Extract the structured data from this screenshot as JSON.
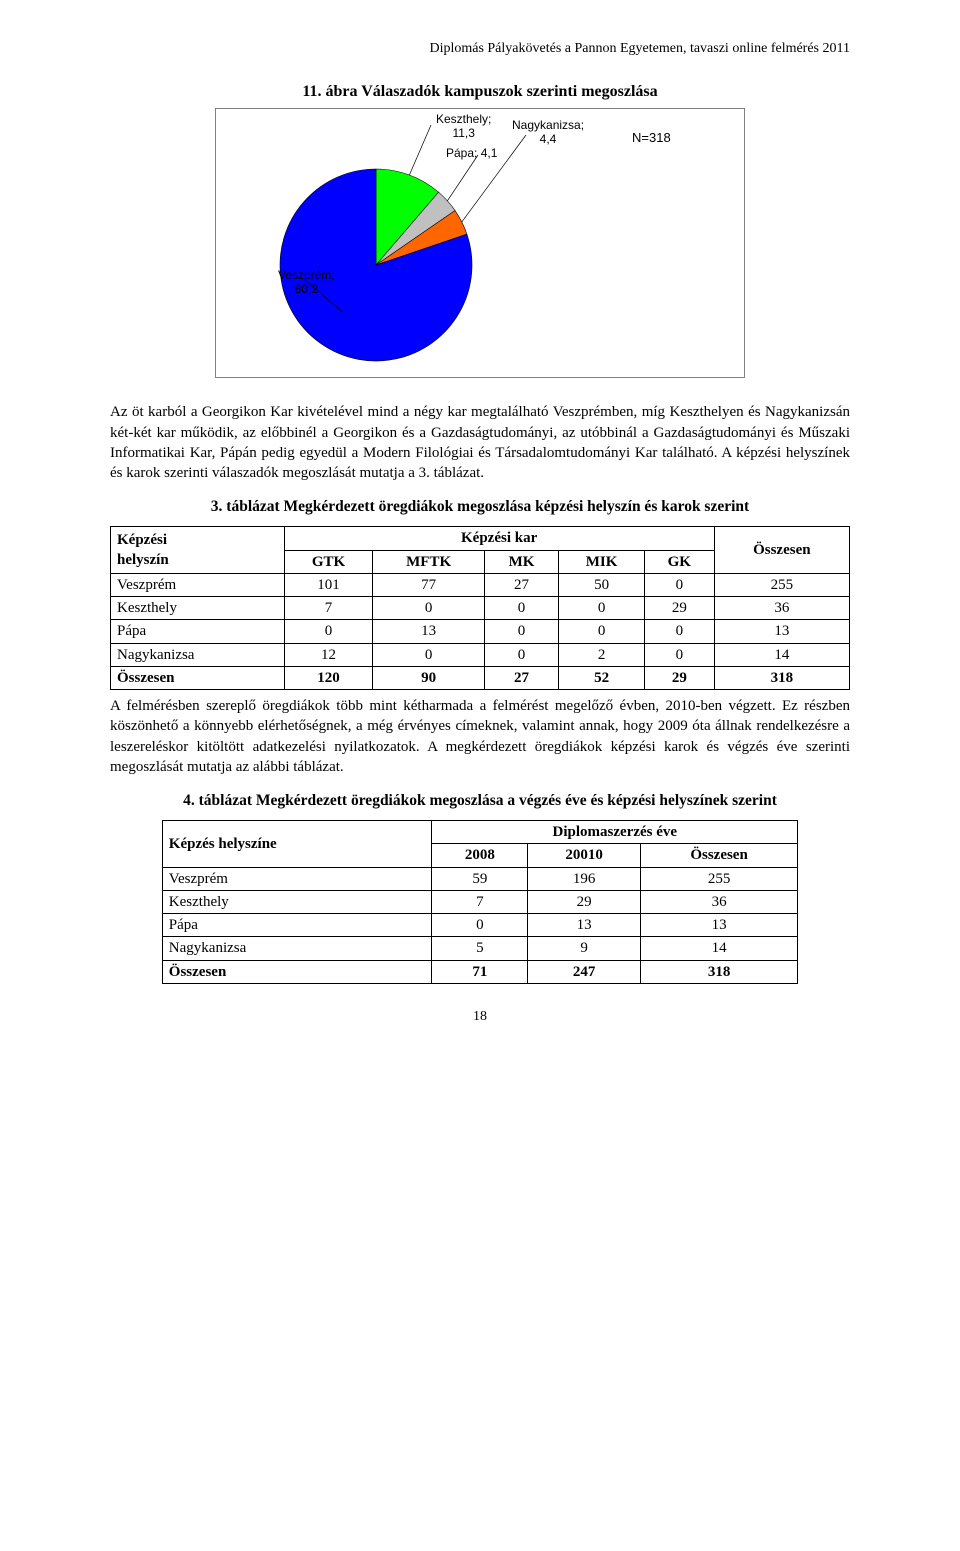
{
  "header": "Diplomás Pályakövetés a Pannon Egyetemen, tavaszi online felmérés 2011",
  "figure": {
    "title": "11. ábra Válaszadók kampuszok szerinti megoszlása",
    "n_label": "N=318",
    "type": "pie",
    "background_color": "#ffffff",
    "border_color": "#808080",
    "slices": [
      {
        "name": "Veszprém",
        "value": 80.2,
        "color": "#0000ff",
        "label": "Veszprém; 80,2"
      },
      {
        "name": "Keszthely",
        "value": 11.3,
        "color": "#00ff00",
        "label": "Keszthely; 11,3"
      },
      {
        "name": "Pápa",
        "value": 4.1,
        "color": "#c0c0c0",
        "label": "Pápa; 4,1"
      },
      {
        "name": "Nagykanizsa",
        "value": 4.4,
        "color": "#ff6600",
        "label": "Nagykanizsa; 4,4"
      }
    ],
    "label_fontsize": 12,
    "leader_color": "#000000"
  },
  "para1": "Az öt karból a Georgikon Kar kivételével mind a négy kar megtalálható Veszprémben, míg Keszthelyen és Nagykanizsán két-két kar működik, az előbbinél a Georgikon és a Gazdaságtudományi, az utóbbinál a Gazdaságtudományi és Műszaki Informatikai Kar, Pápán pedig egyedül a Modern Filológiai és Társadalomtudományi Kar található. A képzési helyszínek és karok szerinti válaszadók megoszlását mutatja a 3. táblázat.",
  "table3": {
    "title": "3. táblázat Megkérdezett öregdiákok megoszlása képzési helyszín és karok szerint",
    "row_header": "Képzési helyszín",
    "col_group": "Képzési kar",
    "columns": [
      "GTK",
      "MFTK",
      "MK",
      "MIK",
      "GK",
      "Összesen"
    ],
    "rows": [
      {
        "label": "Veszprém",
        "cells": [
          "101",
          "77",
          "27",
          "50",
          "0",
          "255"
        ]
      },
      {
        "label": "Keszthely",
        "cells": [
          "7",
          "0",
          "0",
          "0",
          "29",
          "36"
        ]
      },
      {
        "label": "Pápa",
        "cells": [
          "0",
          "13",
          "0",
          "0",
          "0",
          "13"
        ]
      },
      {
        "label": "Nagykanizsa",
        "cells": [
          "12",
          "0",
          "0",
          "2",
          "0",
          "14"
        ]
      },
      {
        "label": "Összesen",
        "cells": [
          "120",
          "90",
          "27",
          "52",
          "29",
          "318"
        ],
        "bold": true
      }
    ]
  },
  "para2": "A felmérésben szereplő öregdiákok több mint kétharmada a felmérést megelőző évben, 2010-ben végzett. Ez részben köszönhető a könnyebb elérhetőségnek, a még érvényes címeknek, valamint annak, hogy 2009 óta állnak rendelkezésre a leszereléskor kitöltött adatkezelési nyilatkozatok. A megkérdezett öregdiákok képzési karok és végzés éve szerinti megoszlását mutatja az alábbi táblázat.",
  "table4": {
    "title": "4. táblázat Megkérdezett öregdiákok megoszlása a végzés éve és képzési helyszínek szerint",
    "row_header": "Képzés helyszíne",
    "col_group": "Diplomaszerzés éve",
    "columns": [
      "2008",
      "20010",
      "Összesen"
    ],
    "rows": [
      {
        "label": "Veszprém",
        "cells": [
          "59",
          "196",
          "255"
        ]
      },
      {
        "label": "Keszthely",
        "cells": [
          "7",
          "29",
          "36"
        ]
      },
      {
        "label": "Pápa",
        "cells": [
          "0",
          "13",
          "13"
        ]
      },
      {
        "label": "Nagykanizsa",
        "cells": [
          "5",
          "9",
          "14"
        ]
      },
      {
        "label": "Összesen",
        "cells": [
          "71",
          "247",
          "318"
        ],
        "bold": true
      }
    ]
  },
  "page_number": "18"
}
